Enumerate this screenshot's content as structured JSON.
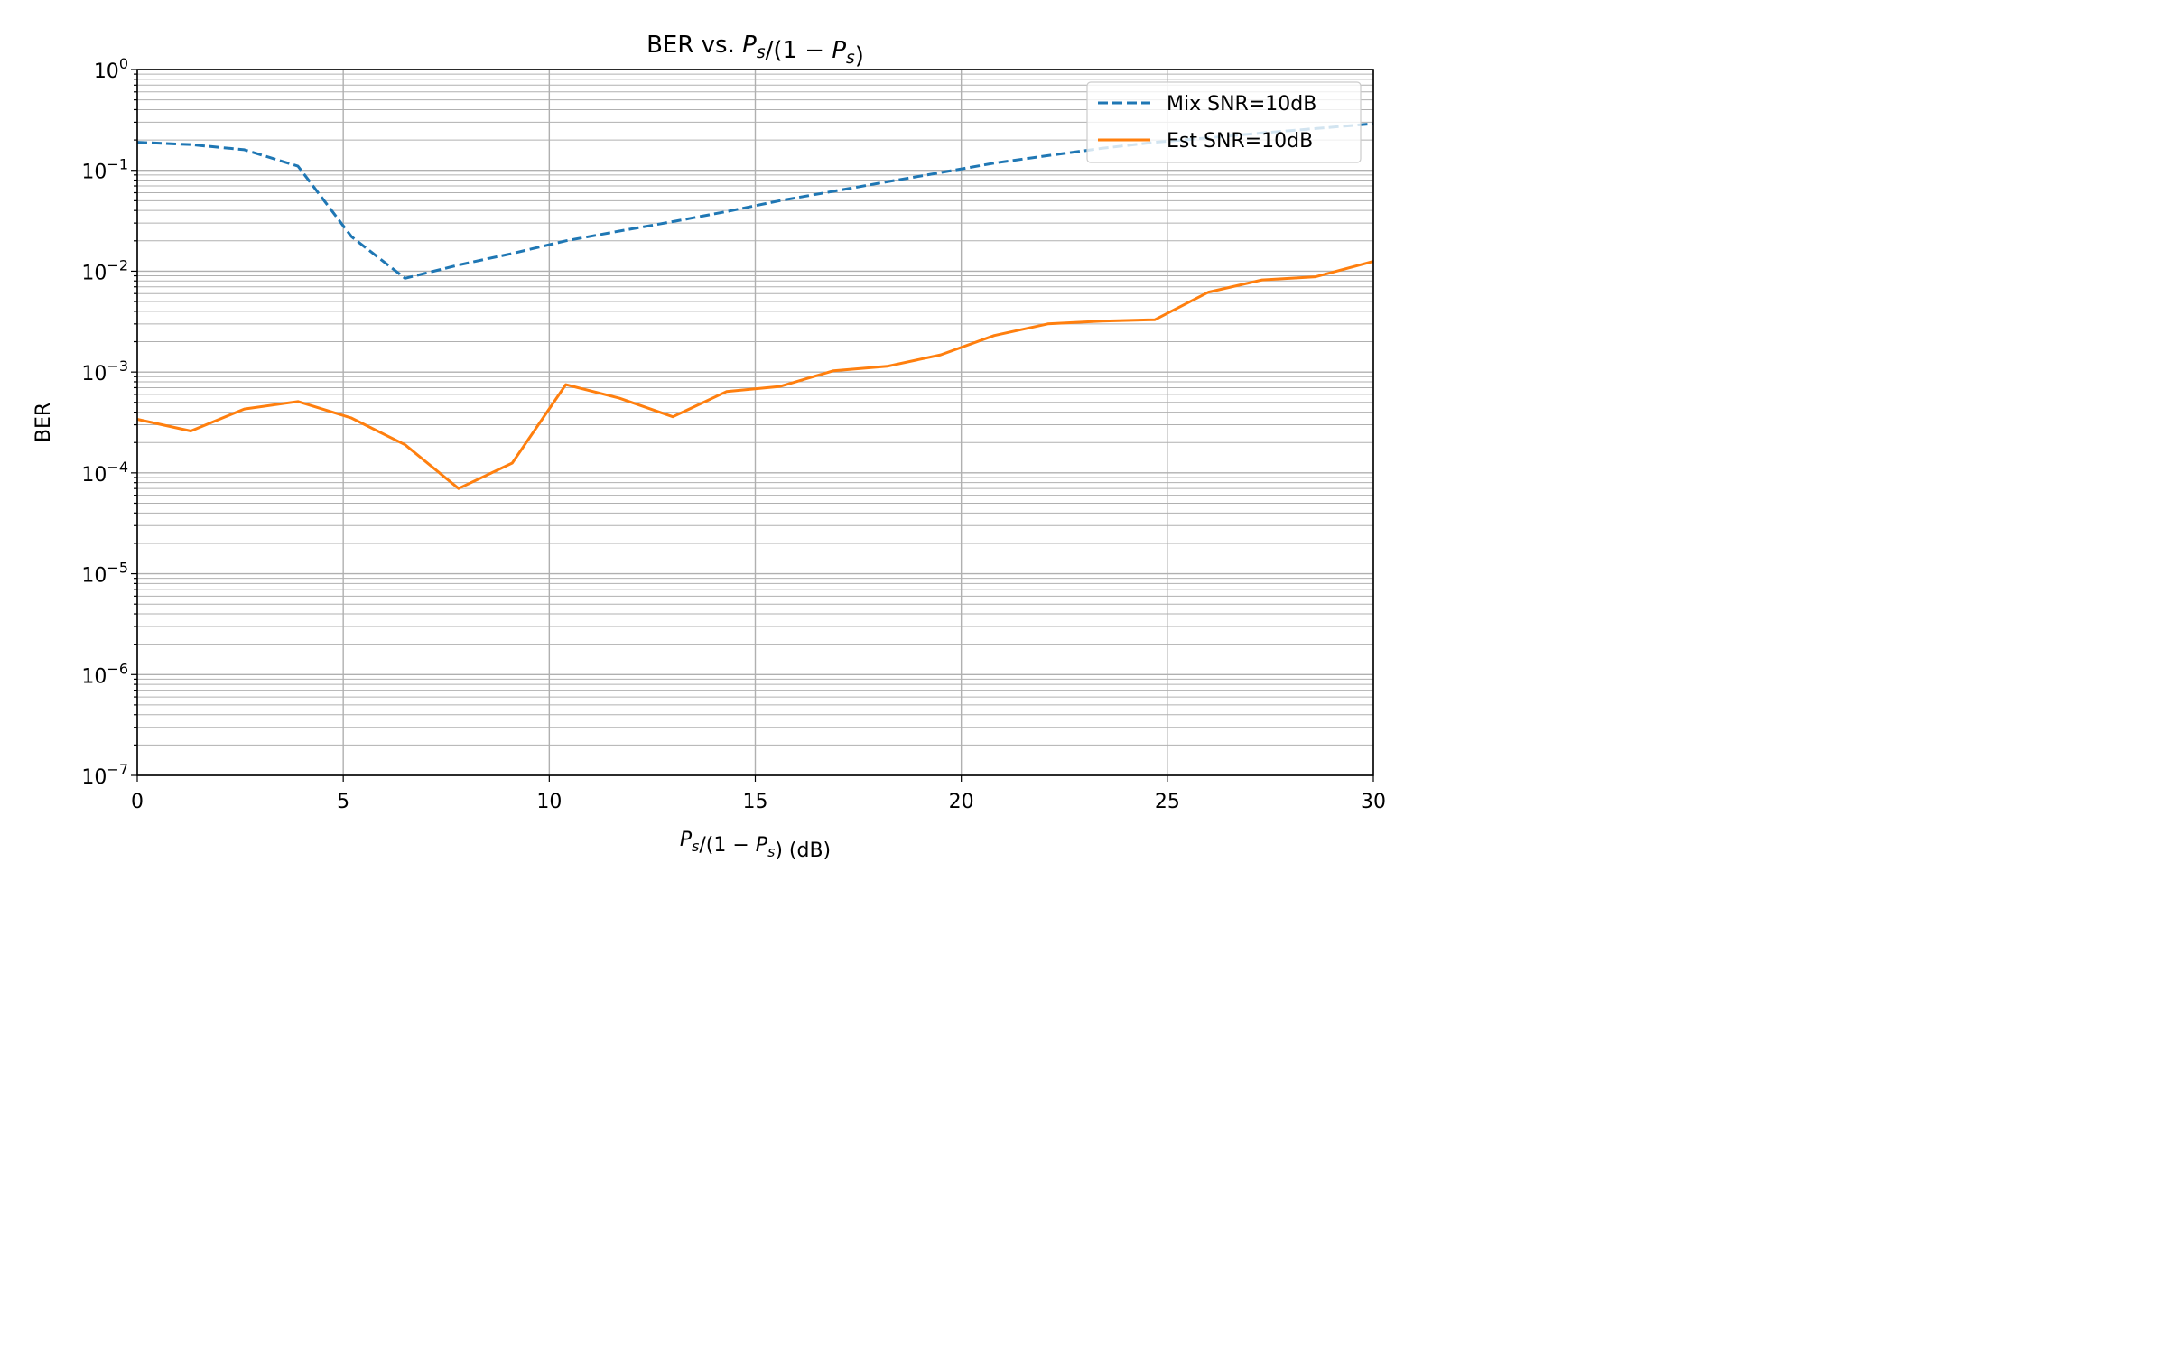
{
  "chart_data": {
    "type": "line",
    "title": "BER vs. P_s/(1 - P_s)",
    "xlabel": "P_s/(1 - P_s) (dB)",
    "ylabel": "BER",
    "xlim": [
      0,
      30
    ],
    "ylim": [
      1e-07,
      1
    ],
    "yscale": "log",
    "grid": true,
    "legend_position": "upper right",
    "xticks": [
      0,
      5,
      10,
      15,
      20,
      25,
      30
    ],
    "xtick_labels": [
      "0",
      "5",
      "10",
      "15",
      "20",
      "25",
      "30"
    ],
    "yticks": [
      1e-07,
      1e-06,
      1e-05,
      0.0001,
      0.001,
      0.01,
      0.1,
      1
    ],
    "ytick_exponents": [
      "-7",
      "-6",
      "-5",
      "-4",
      "-3",
      "-2",
      "-1",
      "0"
    ],
    "series": [
      {
        "name": "Mix SNR=10dB",
        "color": "#1f77b4",
        "linestyle": "dashed",
        "x": [
          0,
          1.3,
          2.6,
          3.9,
          5.2,
          6.5,
          7.8,
          9.1,
          10.4,
          11.7,
          13.0,
          14.3,
          15.6,
          16.9,
          18.2,
          19.5,
          20.8,
          22.1,
          23.4,
          24.7,
          26.0,
          27.3,
          28.6,
          30.0
        ],
        "y": [
          0.19,
          0.18,
          0.16,
          0.11,
          0.022,
          0.0085,
          0.0115,
          0.015,
          0.02,
          0.025,
          0.031,
          0.039,
          0.05,
          0.062,
          0.077,
          0.095,
          0.118,
          0.14,
          0.165,
          0.19,
          0.21,
          0.235,
          0.26,
          0.29
        ]
      },
      {
        "name": "Est SNR=10dB",
        "color": "#ff7f0e",
        "linestyle": "solid",
        "x": [
          0,
          1.3,
          2.6,
          3.9,
          5.2,
          6.5,
          7.8,
          9.1,
          10.4,
          11.7,
          13.0,
          14.3,
          15.6,
          16.9,
          18.2,
          19.5,
          20.8,
          22.1,
          23.4,
          24.7,
          26.0,
          27.3,
          28.6,
          30.0
        ],
        "y": [
          0.00034,
          0.00026,
          0.00043,
          0.00051,
          0.00035,
          0.00019,
          7e-05,
          0.000125,
          0.00075,
          0.00055,
          0.00036,
          0.00064,
          0.00072,
          0.00103,
          0.00114,
          0.00148,
          0.0023,
          0.003,
          0.0032,
          0.0033,
          0.0062,
          0.0082,
          0.0088,
          0.0125
        ]
      }
    ]
  }
}
